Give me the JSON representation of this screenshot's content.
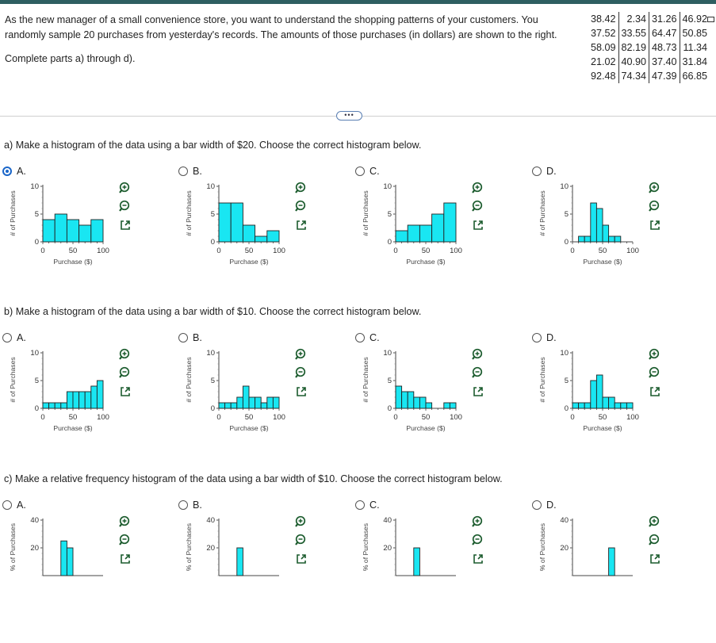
{
  "problem": {
    "intro_line1": "As the new manager of a small convenience store, you want to understand the shopping patterns of your customers. You",
    "intro_line2": "randomly sample 20 purchases from yesterday's records. The amounts of those purchases (in dollars) are shown to the right.",
    "instruction": "Complete parts a) through d).",
    "data_rows": [
      [
        "38.42",
        "2.34",
        "31.26",
        "46.92"
      ],
      [
        "37.52",
        "33.55",
        "64.47",
        "50.85"
      ],
      [
        "58.09",
        "82.19",
        "48.73",
        "11.34"
      ],
      [
        "21.02",
        "40.90",
        "37.40",
        "31.84"
      ],
      [
        "92.48",
        "74.34",
        "47.39",
        "66.85"
      ]
    ],
    "ellipsis": "•••"
  },
  "parts": [
    {
      "question": "a) Make a histogram of the data using a bar width of $20. Choose the correct histogram below.",
      "options": [
        {
          "label": "A.",
          "selected": true,
          "chart_data": {
            "type": "bar",
            "bin_width": 20,
            "x_start": 0,
            "values": [
              4,
              5,
              4,
              3,
              4
            ],
            "ylim": [
              0,
              10
            ],
            "yticks": [
              "0",
              "5",
              "10"
            ],
            "xticks": [
              "0",
              "50",
              "100"
            ],
            "xlabel": "Purchase ($)",
            "ylabel": "# of Purchases"
          }
        },
        {
          "label": "B.",
          "selected": false,
          "chart_data": {
            "type": "bar",
            "bin_width": 20,
            "x_start": 0,
            "values": [
              7,
              7,
              3,
              1,
              2
            ],
            "ylim": [
              0,
              10
            ],
            "yticks": [
              "0",
              "5",
              "10"
            ],
            "xticks": [
              "0",
              "50",
              "100"
            ],
            "xlabel": "Purchase ($)",
            "ylabel": "# of Purchases"
          }
        },
        {
          "label": "C.",
          "selected": false,
          "chart_data": {
            "type": "bar",
            "bin_width": 20,
            "x_start": 0,
            "values": [
              2,
              3,
              3,
              5,
              7
            ],
            "ylim": [
              0,
              10
            ],
            "yticks": [
              "0",
              "5",
              "10"
            ],
            "xticks": [
              "0",
              "50",
              "100"
            ],
            "xlabel": "Purchase ($)",
            "ylabel": "# of Purchases"
          }
        },
        {
          "label": "D.",
          "selected": false,
          "chart_data": {
            "type": "bar",
            "bin_width": 10,
            "x_start": 0,
            "values": [
              0,
              1,
              1,
              7,
              6,
              3,
              1,
              1
            ],
            "ylim": [
              0,
              10
            ],
            "yticks": [
              "0",
              "5",
              "10"
            ],
            "xticks": [
              "0",
              "50",
              "100"
            ],
            "xlabel": "Purchase ($)",
            "ylabel": "# of Purchases"
          }
        }
      ]
    },
    {
      "question": "b) Make a histogram of the data using a bar width of $10. Choose the correct histogram below.",
      "options": [
        {
          "label": "A.",
          "selected": false,
          "chart_data": {
            "type": "bar",
            "bin_width": 10,
            "x_start": 0,
            "values": [
              1,
              1,
              1,
              1,
              3,
              3,
              3,
              3,
              4,
              5
            ],
            "ylim": [
              0,
              10
            ],
            "yticks": [
              "0",
              "5",
              "10"
            ],
            "xticks": [
              "0",
              "50",
              "100"
            ],
            "xlabel": "Purchase ($)",
            "ylabel": "# of Purchases"
          }
        },
        {
          "label": "B.",
          "selected": false,
          "chart_data": {
            "type": "bar",
            "bin_width": 10,
            "x_start": 0,
            "values": [
              1,
              1,
              1,
              2,
              4,
              2,
              2,
              1,
              2,
              2
            ],
            "ylim": [
              0,
              10
            ],
            "yticks": [
              "0",
              "5",
              "10"
            ],
            "xticks": [
              "0",
              "50",
              "100"
            ],
            "xlabel": "Purchase ($)",
            "ylabel": "# of Purchases"
          }
        },
        {
          "label": "C.",
          "selected": false,
          "chart_data": {
            "type": "bar",
            "bin_width": 10,
            "x_start": 0,
            "values": [
              4,
              3,
              3,
              2,
              2,
              1,
              0,
              0,
              1,
              1
            ],
            "ylim": [
              0,
              10
            ],
            "yticks": [
              "0",
              "5",
              "10"
            ],
            "xticks": [
              "0",
              "50",
              "100"
            ],
            "xlabel": "Purchase ($)",
            "ylabel": "# of Purchases"
          }
        },
        {
          "label": "D.",
          "selected": false,
          "chart_data": {
            "type": "bar",
            "bin_width": 10,
            "x_start": 0,
            "values": [
              1,
              1,
              1,
              5,
              6,
              2,
              2,
              1,
              1,
              1
            ],
            "ylim": [
              0,
              10
            ],
            "yticks": [
              "0",
              "5",
              "10"
            ],
            "xticks": [
              "0",
              "50",
              "100"
            ],
            "xlabel": "Purchase ($)",
            "ylabel": "# of Purchases"
          }
        }
      ]
    },
    {
      "question": "c) Make a relative frequency histogram of the data using a bar width of $10. Choose the correct histogram below.",
      "options": [
        {
          "label": "A.",
          "selected": false,
          "chart_data": {
            "type": "bar",
            "bin_width": 10,
            "x_start": 0,
            "values": [
              0,
              0,
              0,
              25,
              20
            ],
            "ylim": [
              0,
              40
            ],
            "yticks": [
              "20",
              "40"
            ],
            "ylabel": "% of Purchases"
          }
        },
        {
          "label": "B.",
          "selected": false,
          "chart_data": {
            "type": "bar",
            "bin_width": 10,
            "x_start": 0,
            "values": [
              0,
              0,
              0,
              20
            ],
            "ylim": [
              0,
              40
            ],
            "yticks": [
              "20",
              "40"
            ],
            "ylabel": "% of Purchases"
          }
        },
        {
          "label": "C.",
          "selected": false,
          "chart_data": {
            "type": "bar",
            "bin_width": 10,
            "x_start": 0,
            "values": [
              0,
              0,
              0,
              20
            ],
            "ylim": [
              0,
              40
            ],
            "yticks": [
              "20",
              "40"
            ],
            "ylabel": "% of Purchases"
          }
        },
        {
          "label": "D.",
          "selected": false,
          "chart_data": {
            "type": "bar",
            "bin_width": 10,
            "x_start": 0,
            "values": [
              0,
              0,
              0,
              0,
              0,
              0,
              20
            ],
            "ylim": [
              0,
              40
            ],
            "yticks": [
              "20",
              "40"
            ],
            "ylabel": "% of Purchases"
          }
        }
      ]
    }
  ],
  "colors": {
    "bar_fill": "#19e6f2",
    "bar_stroke": "#222222",
    "accent": "#1a66c9",
    "header": "#2e5f61"
  },
  "tool_icons": [
    "zoom-in-icon",
    "zoom-out-icon",
    "open-new-window-icon"
  ]
}
